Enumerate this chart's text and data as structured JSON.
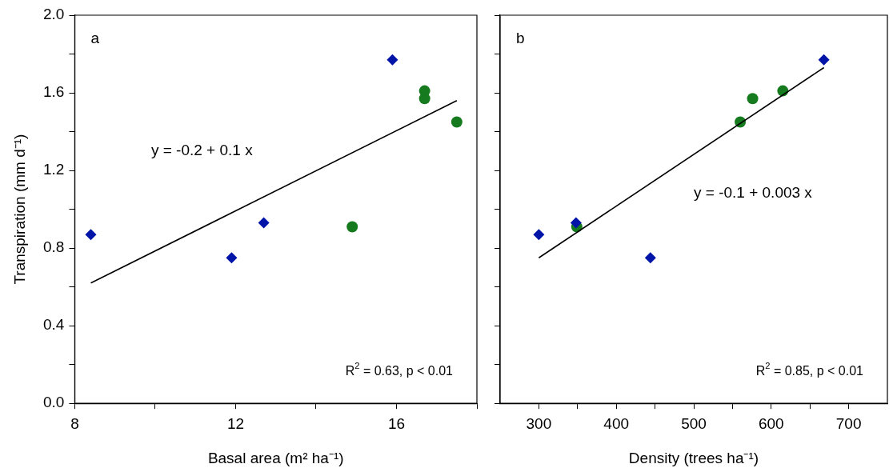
{
  "chart_data": [
    {
      "type": "scatter",
      "xlabel": "Basal area (m² ha⁻¹)",
      "ylabel": "Transpiration (mm d⁻¹)",
      "xlim": [
        8,
        18
      ],
      "xticks": [
        8,
        {
          "value": 10,
          "label": null
        },
        12,
        {
          "value": 14,
          "label": null
        },
        16,
        {
          "value": 18,
          "label": null
        }
      ],
      "ylim": [
        0,
        2
      ],
      "yticks": [
        {
          "value": 0,
          "label": "0.0"
        },
        {
          "value": 0.2,
          "label": null
        },
        {
          "value": 0.4,
          "label": "0.4"
        },
        {
          "value": 0.6,
          "label": null
        },
        {
          "value": 0.8,
          "label": "0.8"
        },
        {
          "value": 1.0,
          "label": null
        },
        {
          "value": 1.2,
          "label": "1.2"
        },
        {
          "value": 1.4,
          "label": null
        },
        {
          "value": 1.6,
          "label": "1.6"
        },
        {
          "value": 1.8,
          "label": null
        },
        {
          "value": 2.0,
          "label": "2.0"
        }
      ],
      "grid": false,
      "legend": false,
      "series": [
        {
          "type": "scatter",
          "marker": "diamond",
          "color": "#0014a8",
          "x": [
            8.4,
            11.9,
            12.7,
            15.9
          ],
          "values": [
            0.87,
            0.75,
            0.93,
            1.77
          ]
        },
        {
          "type": "scatter",
          "marker": "circle",
          "color": "#167a1e",
          "x": [
            14.9,
            16.7,
            16.7,
            17.5
          ],
          "values": [
            0.91,
            1.61,
            1.57,
            1.45
          ]
        },
        {
          "type": "line",
          "marker": "none",
          "color": "#000000",
          "x": [
            8.4,
            17.5
          ],
          "values": [
            0.62,
            1.56
          ]
        }
      ],
      "annotations": [
        "a",
        "y = -0.2 + 0.1 x",
        "R$^{2}$ = 0.63, p < 0.01"
      ]
    },
    {
      "type": "scatter",
      "xlabel": "Density (trees ha⁻¹)",
      "tick_labels": "x",
      "xlim": [
        250,
        750
      ],
      "xticks": [
        300,
        {
          "value": 350,
          "label": null
        },
        400,
        {
          "value": 450,
          "label": null
        },
        500,
        {
          "value": 550,
          "label": null
        },
        600,
        {
          "value": 650,
          "label": null
        },
        700
      ],
      "ylim": [
        0,
        2
      ],
      "yticks": [
        0,
        0.2,
        0.4,
        0.6,
        0.8,
        1.0,
        1.2,
        1.4,
        1.6,
        1.8,
        2.0
      ],
      "grid": false,
      "legend": false,
      "series": [
        {
          "type": "scatter",
          "marker": "diamond",
          "color": "#0014a8",
          "x": [
            300,
            348,
            444,
            668
          ],
          "values": [
            0.87,
            0.93,
            0.75,
            1.77
          ]
        },
        {
          "type": "scatter",
          "marker": "circle",
          "color": "#167a1e",
          "x": [
            349,
            560,
            576,
            615
          ],
          "values": [
            0.91,
            1.45,
            1.57,
            1.61
          ]
        },
        {
          "type": "line",
          "marker": "none",
          "color": "#000000",
          "x": [
            300,
            668
          ],
          "values": [
            0.75,
            1.73
          ]
        }
      ],
      "annotations": [
        "b",
        "y = -0.1 + 0.003 x",
        "R$^{2}$ = 0.85, p < 0.01"
      ]
    }
  ]
}
